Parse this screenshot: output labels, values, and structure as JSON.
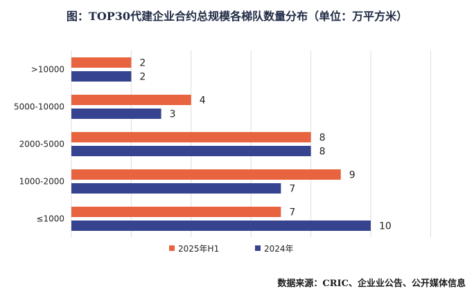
{
  "chart_data": {
    "type": "bar",
    "orientation": "horizontal",
    "title": "图：TOP30代建企业合约总规模各梯队数量分布（单位：万平方米）",
    "categories": [
      ">10000",
      "5000-10000",
      "2000-5000",
      "1000-2000",
      "≤1000"
    ],
    "series": [
      {
        "name": "2025年H1",
        "color": "#e8633f",
        "values": [
          2,
          4,
          8,
          9,
          7
        ]
      },
      {
        "name": "2024年",
        "color": "#36448f",
        "values": [
          2,
          3,
          8,
          7,
          10
        ]
      }
    ],
    "xlim": [
      0,
      12
    ],
    "grid": true,
    "legend": "bottom",
    "source": "数据来源：CRIC、企业业公告、公开媒体信息"
  }
}
